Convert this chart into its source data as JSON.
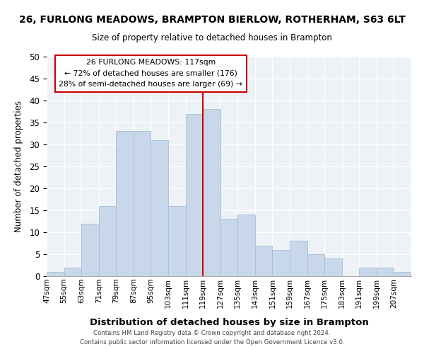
{
  "title": "26, FURLONG MEADOWS, BRAMPTON BIERLOW, ROTHERHAM, S63 6LT",
  "subtitle": "Size of property relative to detached houses in Brampton",
  "xlabel": "Distribution of detached houses by size in Brampton",
  "ylabel": "Number of detached properties",
  "bin_labels": [
    "47sqm",
    "55sqm",
    "63sqm",
    "71sqm",
    "79sqm",
    "87sqm",
    "95sqm",
    "103sqm",
    "111sqm",
    "119sqm",
    "127sqm",
    "135sqm",
    "143sqm",
    "151sqm",
    "159sqm",
    "167sqm",
    "175sqm",
    "183sqm",
    "191sqm",
    "199sqm",
    "207sqm"
  ],
  "bar_values": [
    1,
    2,
    12,
    16,
    33,
    33,
    31,
    16,
    37,
    38,
    13,
    14,
    7,
    6,
    8,
    5,
    4,
    0,
    2,
    2,
    1
  ],
  "bar_color": "#c8d8ea",
  "bar_edgecolor": "#a8bdd4",
  "vline_x": 9,
  "vline_color": "#cc0000",
  "annotation_title": "26 FURLONG MEADOWS: 117sqm",
  "annotation_line1": "← 72% of detached houses are smaller (176)",
  "annotation_line2": "28% of semi-detached houses are larger (69) →",
  "annotation_box_color": "#ffffff",
  "annotation_box_edgecolor": "#cc0000",
  "ylim": [
    0,
    50
  ],
  "yticks": [
    0,
    5,
    10,
    15,
    20,
    25,
    30,
    35,
    40,
    45,
    50
  ],
  "footer1": "Contains HM Land Registry data © Crown copyright and database right 2024.",
  "footer2": "Contains public sector information licensed under the Open Government Licence v3.0.",
  "bg_color": "#edf2f7"
}
